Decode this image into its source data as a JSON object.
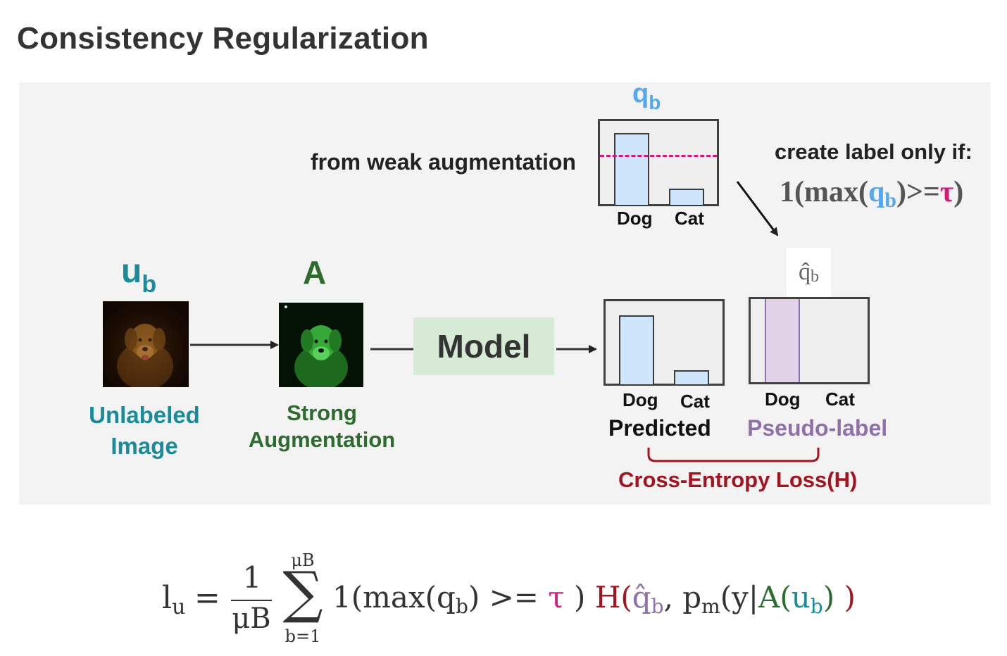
{
  "page": {
    "title": "Consistency Regularization"
  },
  "diagram": {
    "unlabeled": {
      "symbol_main": "u",
      "symbol_sub": "b",
      "label_line1": "Unlabeled",
      "label_line2": "Image"
    },
    "augmentation": {
      "symbol": "A",
      "label_line1": "Strong",
      "label_line2": "Augmentation"
    },
    "model": {
      "label": "Model"
    },
    "weak": {
      "symbol_main": "q",
      "symbol_sub": "b",
      "caption": "from weak augmentation",
      "categories": [
        "Dog",
        "Cat"
      ]
    },
    "condition": {
      "line1": "create label only if:",
      "expr_prefix": "1(max(",
      "expr_q": "q",
      "expr_sub": "b",
      "expr_mid": ")>=",
      "expr_tau": "τ",
      "expr_end": ")"
    },
    "pseudo_symbol": {
      "main": "q̂",
      "sub": "b"
    },
    "predicted": {
      "categories": [
        "Dog",
        "Cat"
      ],
      "label": "Predicted"
    },
    "pseudo_label": {
      "categories": [
        "Dog",
        "Cat"
      ],
      "label": "Pseudo-label"
    },
    "loss": {
      "label": "Cross-Entropy Loss(H)"
    }
  },
  "formula": {
    "lhs_main": "l",
    "lhs_sub": "u",
    "eq": "=",
    "frac_num": "1",
    "frac_den": "μB",
    "sum_upper": "μB",
    "sum_lower": "b=1",
    "indicator": "1(max(q",
    "indicator_sub": "b",
    "indicator_close": ") >= ",
    "tau": "τ",
    "close_paren": ")",
    "H": "H",
    "open_paren": "(",
    "qhat": "q̂",
    "qhat_sub": "b",
    "comma_p": ", p",
    "p_sub": "m",
    "y_part": "(y|",
    "A": "A",
    "A_open": "(",
    "u": "u",
    "u_sub": "b",
    "A_close": ")",
    "final_close": " )"
  },
  "colors": {
    "teal": "#1b8a9a",
    "green": "#2e6b2e",
    "light_blue": "#56a8ee",
    "magenta": "#d31b7c",
    "dark_red": "#a3141f",
    "purple": "#9070a8",
    "model_bg": "#d6ead6",
    "bar_fill": "#cfe5fb",
    "pseudo_fill": "#e3d3e8"
  }
}
